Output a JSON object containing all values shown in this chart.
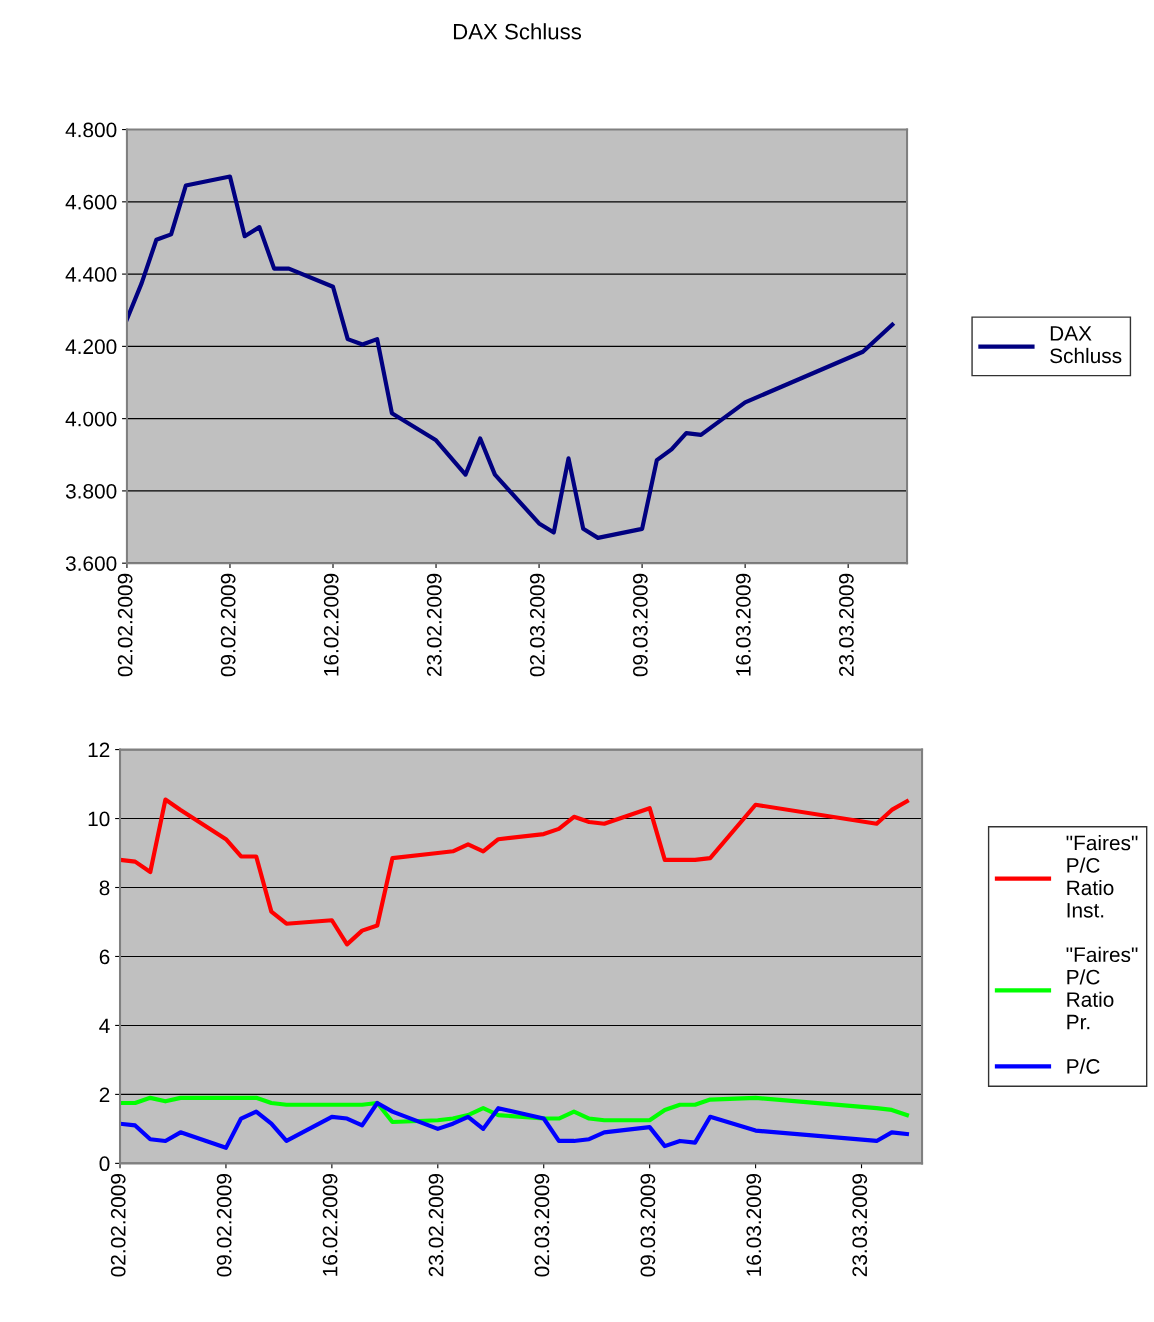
{
  "chart_data": [
    {
      "type": "line",
      "title": "DAX Schluss",
      "legend": "right",
      "grid": "y",
      "marker": "none",
      "line_style": "solid",
      "x": [
        "2009-02-02",
        "2009-02-03",
        "2009-02-04",
        "2009-02-05",
        "2009-02-06",
        "2009-02-09",
        "2009-02-10",
        "2009-02-11",
        "2009-02-12",
        "2009-02-13",
        "2009-02-16",
        "2009-02-17",
        "2009-02-18",
        "2009-02-19",
        "2009-02-20",
        "2009-02-23",
        "2009-02-25",
        "2009-02-26",
        "2009-02-27",
        "2009-03-02",
        "2009-03-03",
        "2009-03-04",
        "2009-03-05",
        "2009-03-06",
        "2009-03-09",
        "2009-03-10",
        "2009-03-11",
        "2009-03-12",
        "2009-03-13",
        "2009-03-16",
        "2009-03-24",
        "2009-03-26"
      ],
      "series": [
        {
          "name": "DAX Schluss",
          "color": "#000080",
          "values": [
            4275,
            4375,
            4495,
            4510,
            4645,
            4670,
            4505,
            4530,
            4415,
            4415,
            4365,
            4220,
            4205,
            4220,
            4015,
            3940,
            3845,
            3945,
            3845,
            3710,
            3685,
            3890,
            3695,
            3670,
            3695,
            3885,
            3915,
            3960,
            3955,
            4045,
            4185,
            4260
          ]
        }
      ],
      "xlim": [
        "2009-02-02",
        "2009-03-27"
      ],
      "xticks": [
        {
          "value": "2009-02-02",
          "label": "02.02.2009"
        },
        {
          "value": "2009-02-09",
          "label": "09.02.2009"
        },
        {
          "value": "2009-02-16",
          "label": "16.02.2009"
        },
        {
          "value": "2009-02-23",
          "label": "23.02.2009"
        },
        {
          "value": "2009-03-02",
          "label": "02.03.2009"
        },
        {
          "value": "2009-03-09",
          "label": "09.03.2009"
        },
        {
          "value": "2009-03-16",
          "label": "16.03.2009"
        },
        {
          "value": "2009-03-23",
          "label": "23.03.2009"
        }
      ],
      "ylim": [
        3600,
        4800
      ],
      "yticks": [
        {
          "value": 3600,
          "label": "3.600"
        },
        {
          "value": 3800,
          "label": "3.800"
        },
        {
          "value": 4000,
          "label": "4.000"
        },
        {
          "value": 4200,
          "label": "4.200"
        },
        {
          "value": 4400,
          "label": "4.400"
        },
        {
          "value": 4600,
          "label": "4.600"
        },
        {
          "value": 4800,
          "label": "4.800"
        }
      ]
    },
    {
      "type": "line",
      "legend": "right",
      "grid": "y",
      "marker": "none",
      "line_style": "solid",
      "x": [
        "2009-02-02",
        "2009-02-03",
        "2009-02-04",
        "2009-02-05",
        "2009-02-06",
        "2009-02-09",
        "2009-02-10",
        "2009-02-11",
        "2009-02-12",
        "2009-02-13",
        "2009-02-16",
        "2009-02-17",
        "2009-02-18",
        "2009-02-19",
        "2009-02-20",
        "2009-02-23",
        "2009-02-24",
        "2009-02-25",
        "2009-02-26",
        "2009-02-27",
        "2009-03-02",
        "2009-03-03",
        "2009-03-04",
        "2009-03-05",
        "2009-03-06",
        "2009-03-09",
        "2009-03-10",
        "2009-03-11",
        "2009-03-12",
        "2009-03-13",
        "2009-03-16",
        "2009-03-24",
        "2009-03-25",
        "2009-03-26"
      ],
      "series": [
        {
          "name": "\"Faires\" P/C Ratio Inst.",
          "color": "#ff0000",
          "values": [
            8.8,
            8.75,
            8.45,
            10.55,
            10.25,
            9.4,
            8.9,
            8.9,
            7.3,
            6.95,
            7.05,
            6.35,
            6.75,
            6.9,
            8.85,
            9.0,
            9.05,
            9.25,
            9.05,
            9.4,
            9.55,
            9.7,
            10.05,
            9.9,
            9.85,
            10.3,
            8.8,
            8.8,
            8.8,
            8.85,
            10.4,
            9.85,
            10.25,
            10.5
          ]
        },
        {
          "name": "\"Faires\" P/C Ratio Pr.",
          "color": "#00ff00",
          "values": [
            1.75,
            1.75,
            1.9,
            1.8,
            1.9,
            1.9,
            1.9,
            1.9,
            1.75,
            1.7,
            1.7,
            1.7,
            1.7,
            1.75,
            1.2,
            1.25,
            1.3,
            1.4,
            1.6,
            1.4,
            1.3,
            1.3,
            1.5,
            1.3,
            1.25,
            1.25,
            1.55,
            1.7,
            1.7,
            1.85,
            1.9,
            1.6,
            1.55,
            1.4
          ]
        },
        {
          "name": "P/C",
          "color": "#0000ff",
          "values": [
            1.15,
            1.1,
            0.7,
            0.65,
            0.9,
            0.45,
            1.3,
            1.5,
            1.15,
            0.65,
            1.35,
            1.3,
            1.1,
            1.75,
            1.5,
            1.0,
            1.15,
            1.35,
            1.0,
            1.6,
            1.3,
            0.65,
            0.65,
            0.7,
            0.9,
            1.05,
            0.5,
            0.65,
            0.6,
            1.35,
            0.95,
            0.65,
            0.9,
            0.85
          ]
        }
      ],
      "xlim": [
        "2009-02-02",
        "2009-03-27"
      ],
      "xticks": [
        {
          "value": "2009-02-02",
          "label": "02.02.2009"
        },
        {
          "value": "2009-02-09",
          "label": "09.02.2009"
        },
        {
          "value": "2009-02-16",
          "label": "16.02.2009"
        },
        {
          "value": "2009-02-23",
          "label": "23.02.2009"
        },
        {
          "value": "2009-03-02",
          "label": "02.03.2009"
        },
        {
          "value": "2009-03-09",
          "label": "09.03.2009"
        },
        {
          "value": "2009-03-16",
          "label": "16.03.2009"
        },
        {
          "value": "2009-03-23",
          "label": "23.03.2009"
        }
      ],
      "ylim": [
        0,
        12
      ],
      "yticks": [
        0,
        2,
        4,
        6,
        8,
        10,
        12
      ]
    }
  ]
}
